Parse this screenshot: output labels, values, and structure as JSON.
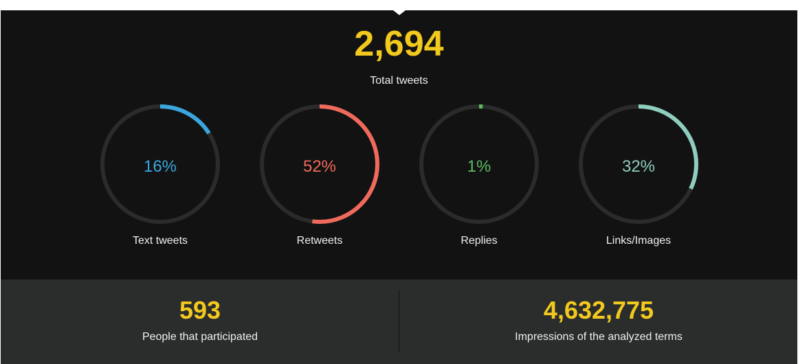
{
  "summary": {
    "total_value": "2,694",
    "total_label": "Total tweets"
  },
  "chart_data": {
    "type": "pie",
    "track_color": "#2b2b2b",
    "items": [
      {
        "label": "Text tweets",
        "pct_text": "16%",
        "value": 16,
        "color": "#3aa6dd"
      },
      {
        "label": "Retweets",
        "pct_text": "52%",
        "value": 52,
        "color": "#f06a5c"
      },
      {
        "label": "Replies",
        "pct_text": "1%",
        "value": 1,
        "color": "#5dbb63"
      },
      {
        "label": "Links/Images",
        "pct_text": "32%",
        "value": 32,
        "color": "#8fcdbe"
      }
    ]
  },
  "stats": {
    "participants_value": "593",
    "participants_label": "People that participated",
    "impressions_value": "4,632,775",
    "impressions_label": "Impressions of the analyzed terms"
  },
  "colors": {
    "accent": "#f2c91d",
    "dark_bg": "#121212",
    "bottom_bg": "#2b2c2c"
  }
}
